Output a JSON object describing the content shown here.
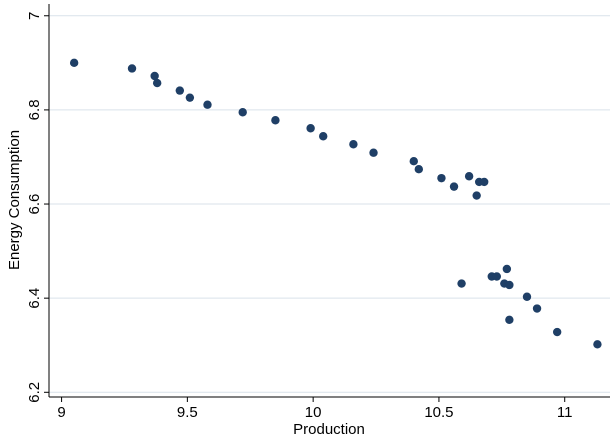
{
  "chart_data": {
    "type": "scatter",
    "xlabel": "Production",
    "ylabel": "Energy Consumption",
    "xlim": [
      8.95,
      11.18
    ],
    "ylim": [
      6.19,
      7.025
    ],
    "xticks": [
      9,
      9.5,
      10,
      10.5,
      11
    ],
    "xtick_labels": [
      "9",
      "9.5",
      "10",
      "10.5",
      "11"
    ],
    "yticks": [
      6.2,
      6.4,
      6.6,
      6.8,
      7
    ],
    "ytick_labels": [
      "6.2",
      "6.4",
      "6.6",
      "6.8",
      "7"
    ],
    "grid": "horizontal",
    "colors": {
      "marker": "#1f3f66",
      "grid": "#d9e2ea",
      "axis": "#000000",
      "plot_bg": "#ffffff"
    },
    "points": [
      [
        9.05,
        6.9
      ],
      [
        9.28,
        6.888
      ],
      [
        9.37,
        6.872
      ],
      [
        9.38,
        6.857
      ],
      [
        9.47,
        6.841
      ],
      [
        9.51,
        6.826
      ],
      [
        9.58,
        6.811
      ],
      [
        9.72,
        6.795
      ],
      [
        9.85,
        6.778
      ],
      [
        9.99,
        6.761
      ],
      [
        10.04,
        6.744
      ],
      [
        10.16,
        6.727
      ],
      [
        10.24,
        6.709
      ],
      [
        10.4,
        6.691
      ],
      [
        10.42,
        6.674
      ],
      [
        10.51,
        6.655
      ],
      [
        10.56,
        6.637
      ],
      [
        10.62,
        6.659
      ],
      [
        10.66,
        6.647
      ],
      [
        10.68,
        6.647
      ],
      [
        10.65,
        6.618
      ],
      [
        10.59,
        6.431
      ],
      [
        10.71,
        6.446
      ],
      [
        10.73,
        6.446
      ],
      [
        10.77,
        6.462
      ],
      [
        10.76,
        6.431
      ],
      [
        10.78,
        6.428
      ],
      [
        10.85,
        6.403
      ],
      [
        10.89,
        6.378
      ],
      [
        10.78,
        6.354
      ],
      [
        10.97,
        6.328
      ],
      [
        11.13,
        6.302
      ]
    ]
  }
}
